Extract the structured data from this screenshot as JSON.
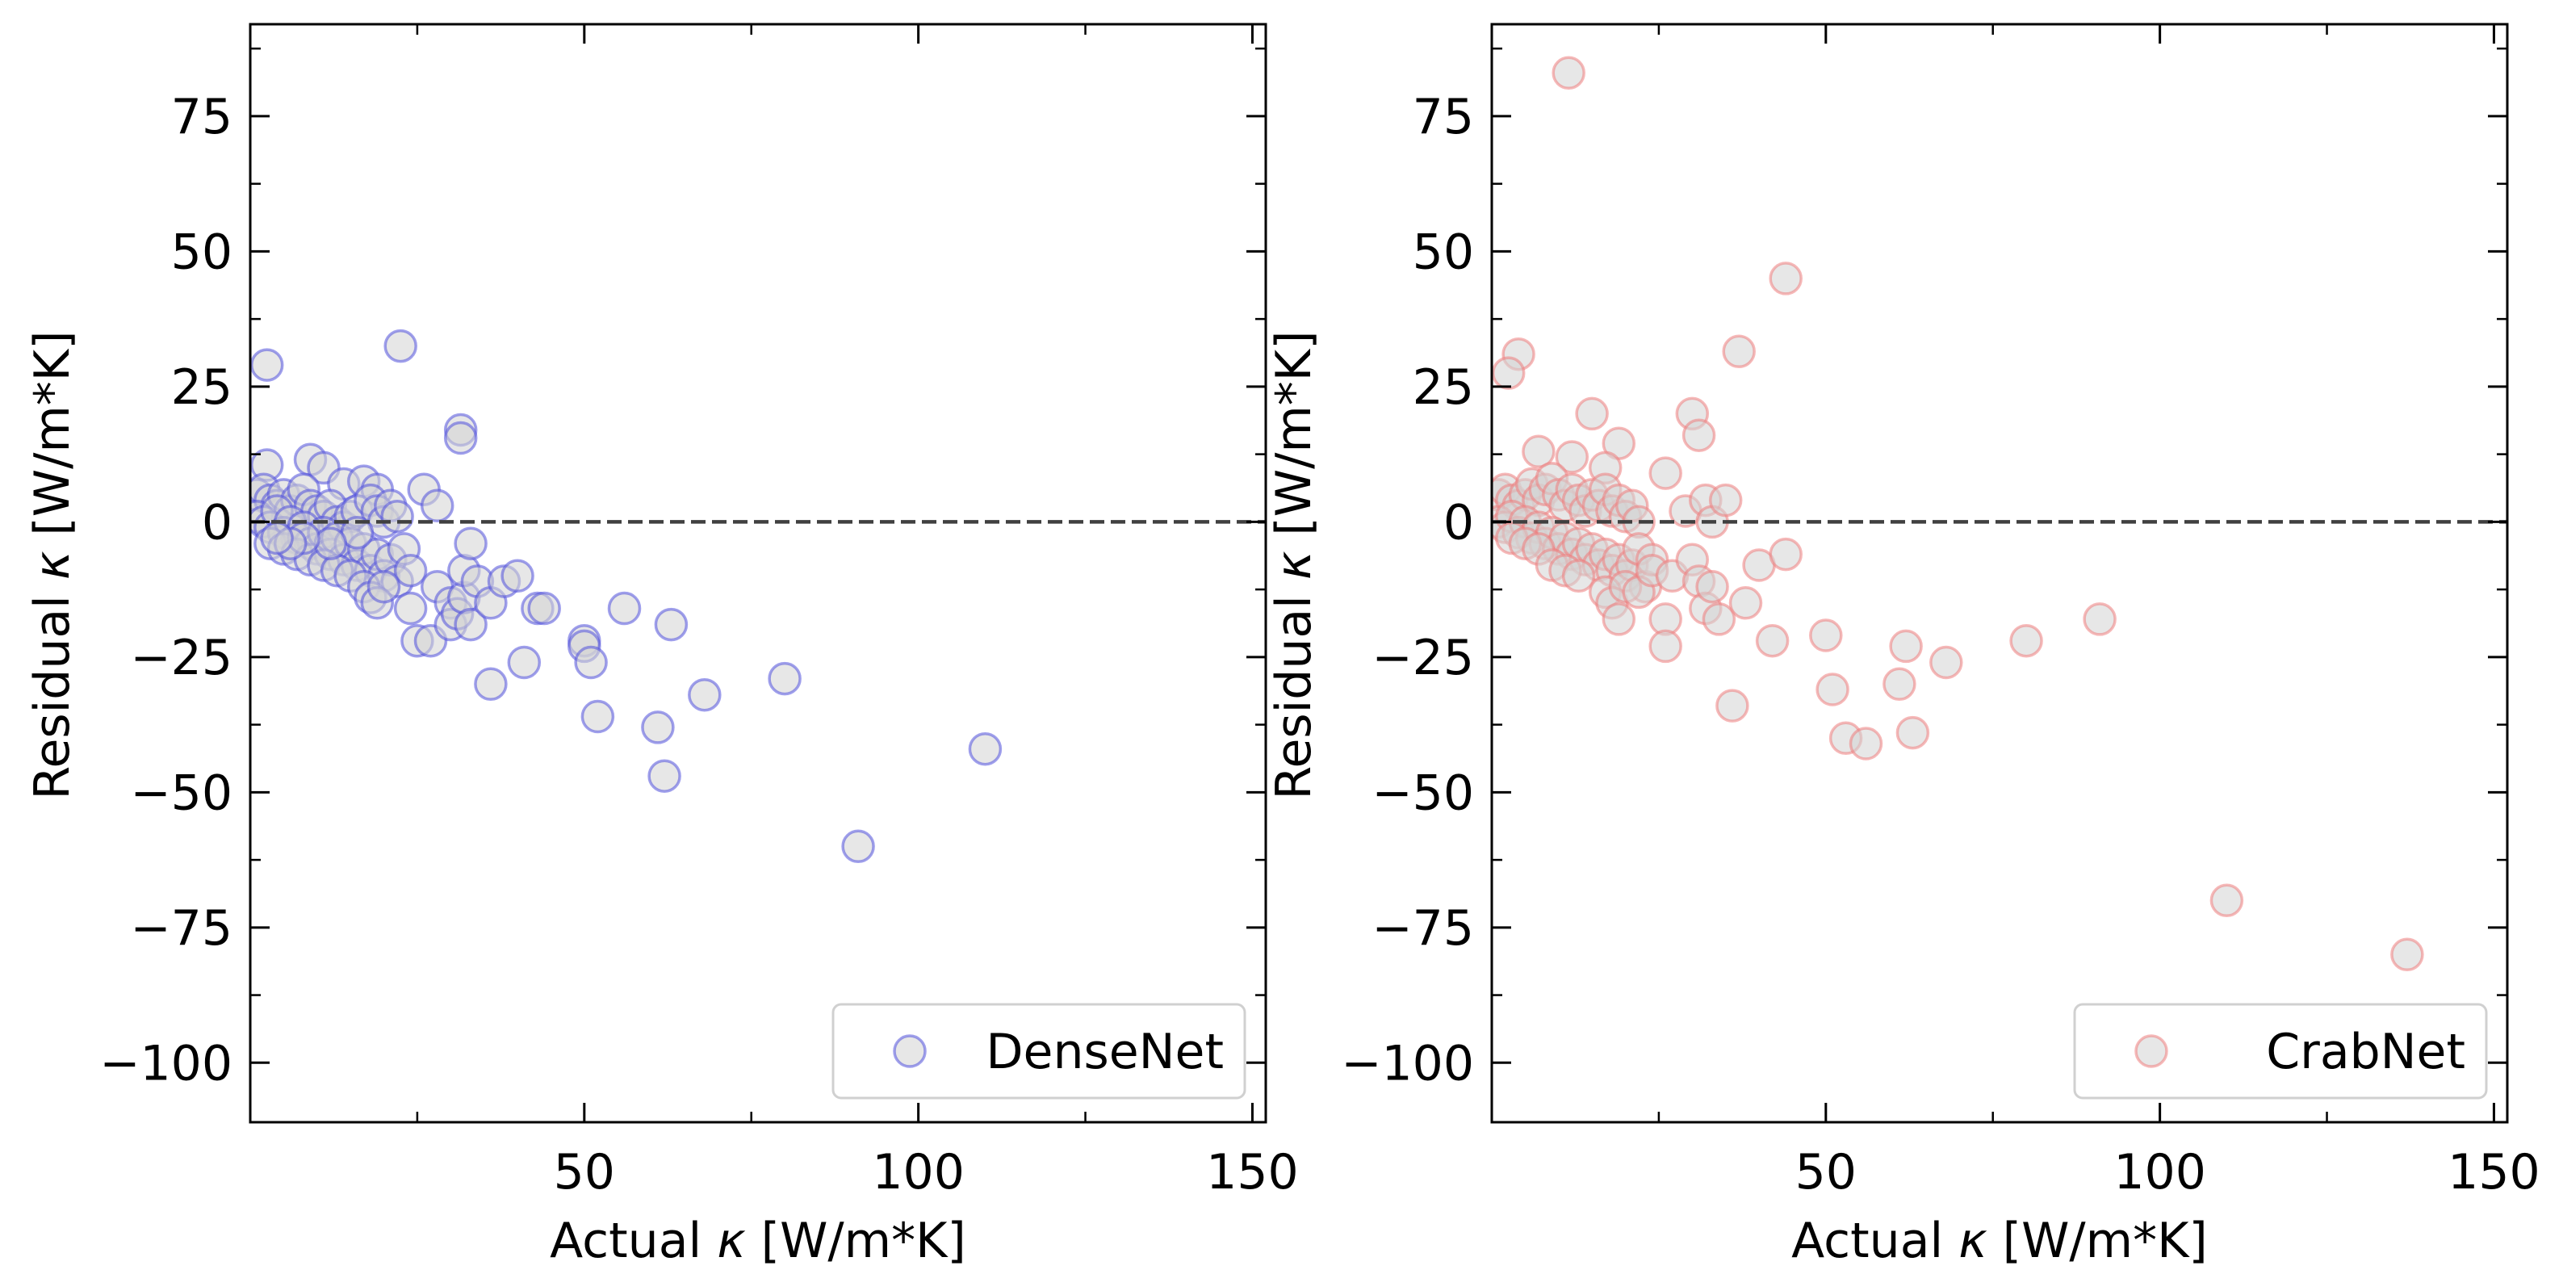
{
  "chart_data": [
    {
      "type": "scatter",
      "xlabel_prefix": "Actual ",
      "xlabel_symbol": "κ",
      "xlabel_suffix": " [W/m*K]",
      "ylabel_prefix": "Residual ",
      "ylabel_symbol": "κ",
      "ylabel_suffix": " [W/m*K]",
      "xlim": [
        0,
        152
      ],
      "ylim": [
        -111,
        92
      ],
      "xticks": [
        50,
        100,
        150
      ],
      "xtick_labels": [
        "50",
        "100",
        "150"
      ],
      "yticks": [
        75,
        50,
        25,
        0,
        -25,
        -50,
        -75,
        -100
      ],
      "ytick_labels": [
        "75",
        "50",
        "25",
        "0",
        "−25",
        "−50",
        "−75",
        "−100"
      ],
      "reference_line_y": 0,
      "legend_position": "lower-right",
      "marker_edge_color": "#5050dc",
      "marker_face_color": "#d3d3d3",
      "series": [
        {
          "name": "DenseNet",
          "points": [
            [
              2.5,
              29
            ],
            [
              22.5,
              32.5
            ],
            [
              31.5,
              17
            ],
            [
              31.5,
              15.5
            ],
            [
              2.5,
              10.5
            ],
            [
              9,
              11.5
            ],
            [
              11,
              10
            ],
            [
              14,
              7
            ],
            [
              17,
              7.5
            ],
            [
              19,
              6
            ],
            [
              26,
              6
            ],
            [
              28,
              3
            ],
            [
              1,
              5
            ],
            [
              2,
              6
            ],
            [
              3,
              4
            ],
            [
              4,
              3
            ],
            [
              5,
              5
            ],
            [
              6,
              2
            ],
            [
              7,
              4
            ],
            [
              8,
              6
            ],
            [
              9,
              3
            ],
            [
              10,
              2
            ],
            [
              11,
              1
            ],
            [
              12,
              3
            ],
            [
              13,
              0
            ],
            [
              14,
              -1
            ],
            [
              15,
              1
            ],
            [
              16,
              2
            ],
            [
              18,
              4
            ],
            [
              19,
              2
            ],
            [
              20,
              0
            ],
            [
              21,
              3
            ],
            [
              22,
              1
            ],
            [
              1,
              1
            ],
            [
              2,
              0
            ],
            [
              3,
              -1
            ],
            [
              4,
              2
            ],
            [
              5,
              -2
            ],
            [
              6,
              0
            ],
            [
              7,
              -3
            ],
            [
              8,
              -1
            ],
            [
              9,
              -4
            ],
            [
              10,
              -5
            ],
            [
              11,
              -2
            ],
            [
              12,
              -6
            ],
            [
              13,
              -3
            ],
            [
              14,
              -7
            ],
            [
              15,
              -4
            ],
            [
              16,
              -8
            ],
            [
              17,
              -5
            ],
            [
              18,
              -9
            ],
            [
              19,
              -6
            ],
            [
              20,
              -10
            ],
            [
              21,
              -7
            ],
            [
              22,
              -11
            ],
            [
              23,
              -5
            ],
            [
              24,
              -9
            ],
            [
              3,
              -4
            ],
            [
              5,
              -5
            ],
            [
              7,
              -6
            ],
            [
              9,
              -7
            ],
            [
              11,
              -8
            ],
            [
              13,
              -9
            ],
            [
              15,
              -10
            ],
            [
              17,
              -12
            ],
            [
              18,
              -14
            ],
            [
              19,
              -15
            ],
            [
              20,
              -12
            ],
            [
              16,
              -2
            ],
            [
              12,
              -4
            ],
            [
              8,
              -3
            ],
            [
              6,
              -4
            ],
            [
              4,
              -3
            ],
            [
              24,
              -16
            ],
            [
              25,
              -22
            ],
            [
              27,
              -22
            ],
            [
              28,
              -12
            ],
            [
              30,
              -15
            ],
            [
              30,
              -19
            ],
            [
              31,
              -17
            ],
            [
              32,
              -14
            ],
            [
              32,
              -9
            ],
            [
              33,
              -19
            ],
            [
              33,
              -4
            ],
            [
              34,
              -11
            ],
            [
              36,
              -15
            ],
            [
              38,
              -11
            ],
            [
              40,
              -10
            ],
            [
              43,
              -16
            ],
            [
              44,
              -16
            ],
            [
              36,
              -30
            ],
            [
              41,
              -26
            ],
            [
              50,
              -22
            ],
            [
              50,
              -23
            ],
            [
              51,
              -26
            ],
            [
              52,
              -36
            ],
            [
              56,
              -16
            ],
            [
              61,
              -38
            ],
            [
              62,
              -47
            ],
            [
              63,
              -19
            ],
            [
              68,
              -32
            ],
            [
              80,
              -29
            ],
            [
              91,
              -60
            ],
            [
              110,
              -42
            ]
          ]
        }
      ]
    },
    {
      "type": "scatter",
      "xlabel_prefix": "Actual ",
      "xlabel_symbol": "κ",
      "xlabel_suffix": " [W/m*K]",
      "ylabel_prefix": "Residual ",
      "ylabel_symbol": "κ",
      "ylabel_suffix": " [W/m*K]",
      "xlim": [
        0,
        152
      ],
      "ylim": [
        -111,
        92
      ],
      "xticks": [
        50,
        100,
        150
      ],
      "xtick_labels": [
        "50",
        "100",
        "150"
      ],
      "yticks": [
        75,
        50,
        25,
        0,
        -25,
        -50,
        -75,
        -100
      ],
      "ytick_labels": [
        "75",
        "50",
        "25",
        "0",
        "−25",
        "−50",
        "−75",
        "−100"
      ],
      "reference_line_y": 0,
      "legend_position": "lower-right",
      "marker_edge_color": "#ee7d7d",
      "marker_face_color": "#d3d3d3",
      "series": [
        {
          "name": "CrabNet",
          "points": [
            [
              11.5,
              83
            ],
            [
              44,
              45
            ],
            [
              4,
              31
            ],
            [
              2.5,
              27.5
            ],
            [
              37,
              31.5
            ],
            [
              30,
              20
            ],
            [
              15,
              20
            ],
            [
              31,
              16
            ],
            [
              19,
              14.5
            ],
            [
              7,
              13
            ],
            [
              12,
              12
            ],
            [
              26,
              9
            ],
            [
              17,
              10
            ],
            [
              1,
              5
            ],
            [
              2,
              6
            ],
            [
              3,
              4
            ],
            [
              4,
              3
            ],
            [
              5,
              5
            ],
            [
              6,
              7
            ],
            [
              7,
              4
            ],
            [
              8,
              6
            ],
            [
              9,
              8
            ],
            [
              10,
              5
            ],
            [
              11,
              3
            ],
            [
              12,
              6
            ],
            [
              13,
              4
            ],
            [
              14,
              2
            ],
            [
              15,
              5
            ],
            [
              16,
              3
            ],
            [
              17,
              6
            ],
            [
              18,
              2
            ],
            [
              19,
              4
            ],
            [
              20,
              1
            ],
            [
              21,
              3
            ],
            [
              22,
              0
            ],
            [
              1,
              0
            ],
            [
              2,
              -1
            ],
            [
              3,
              1
            ],
            [
              4,
              -2
            ],
            [
              5,
              0
            ],
            [
              6,
              -3
            ],
            [
              7,
              -1
            ],
            [
              8,
              -4
            ],
            [
              9,
              -2
            ],
            [
              10,
              -5
            ],
            [
              11,
              -3
            ],
            [
              12,
              -6
            ],
            [
              13,
              -4
            ],
            [
              14,
              -7
            ],
            [
              15,
              -5
            ],
            [
              16,
              -8
            ],
            [
              17,
              -6
            ],
            [
              18,
              -9
            ],
            [
              19,
              -7
            ],
            [
              20,
              -10
            ],
            [
              21,
              -8
            ],
            [
              22,
              -5
            ],
            [
              23,
              -12
            ],
            [
              24,
              -7
            ],
            [
              3,
              -3
            ],
            [
              5,
              -4
            ],
            [
              7,
              -5
            ],
            [
              9,
              -8
            ],
            [
              11,
              -9
            ],
            [
              13,
              -10
            ],
            [
              17,
              -13
            ],
            [
              18,
              -15
            ],
            [
              19,
              -18
            ],
            [
              20,
              -12
            ],
            [
              22,
              -13
            ],
            [
              24,
              -9
            ],
            [
              26,
              -18
            ],
            [
              26,
              -23
            ],
            [
              27,
              -10
            ],
            [
              29,
              2
            ],
            [
              30,
              -7
            ],
            [
              31,
              -11
            ],
            [
              32,
              -16
            ],
            [
              32,
              4
            ],
            [
              33,
              0
            ],
            [
              33,
              -12
            ],
            [
              34,
              -18
            ],
            [
              35,
              4
            ],
            [
              38,
              -15
            ],
            [
              40,
              -8
            ],
            [
              44,
              -6
            ],
            [
              36,
              -34
            ],
            [
              42,
              -22
            ],
            [
              50,
              -21
            ],
            [
              51,
              -31
            ],
            [
              53,
              -40
            ],
            [
              56,
              -41
            ],
            [
              61,
              -30
            ],
            [
              62,
              -23
            ],
            [
              63,
              -39
            ],
            [
              68,
              -26
            ],
            [
              80,
              -22
            ],
            [
              91,
              -18
            ],
            [
              110,
              -70
            ],
            [
              137,
              -80
            ]
          ]
        }
      ]
    }
  ]
}
